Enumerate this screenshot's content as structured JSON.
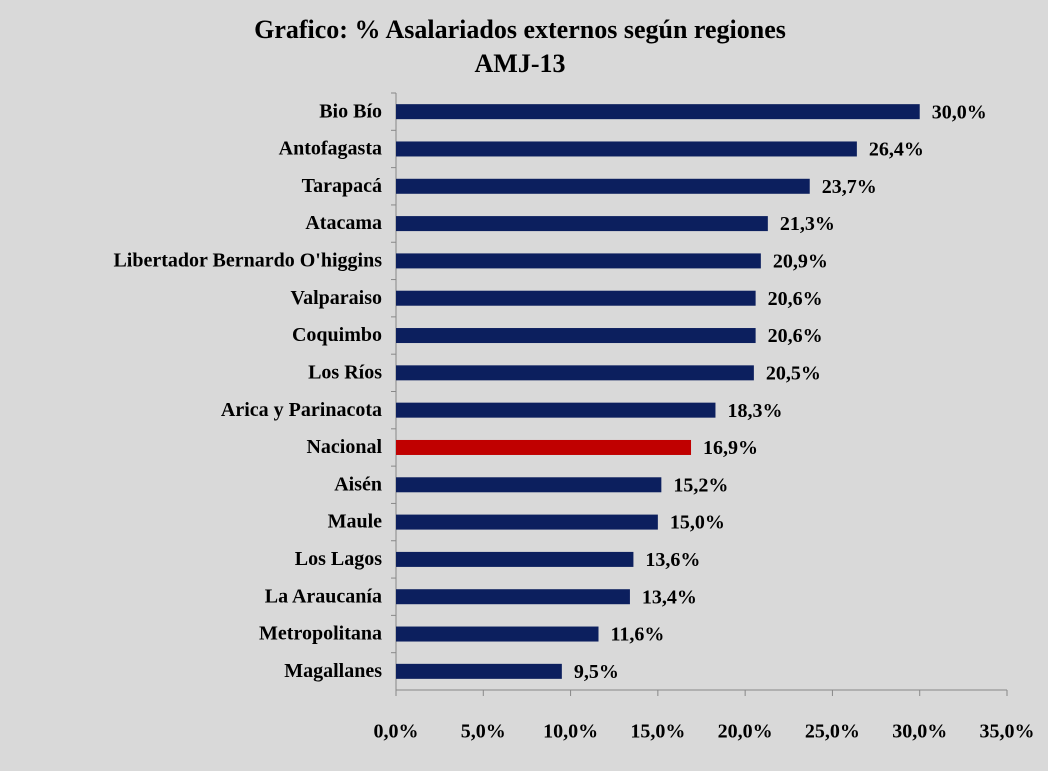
{
  "chart_data": {
    "type": "barh",
    "title": "Grafico: % Asalariados externos según regiones",
    "subtitle": "AMJ-13",
    "categories": [
      "Bio Bío",
      "Antofagasta",
      "Tarapacá",
      "Atacama",
      "Libertador Bernardo O'higgins",
      "Valparaiso",
      "Coquimbo",
      "Los Ríos",
      "Arica y Parinacota",
      "Nacional",
      "Aisén",
      "Maule",
      "Los Lagos",
      "La Araucanía",
      "Metropolitana",
      "Magallanes"
    ],
    "values": [
      30.0,
      26.4,
      23.7,
      21.3,
      20.9,
      20.6,
      20.6,
      20.5,
      18.3,
      16.9,
      15.2,
      15.0,
      13.6,
      13.4,
      11.6,
      9.5
    ],
    "value_labels": [
      "30,0%",
      "26,4%",
      "23,7%",
      "21,3%",
      "20,9%",
      "20,6%",
      "20,6%",
      "20,5%",
      "18,3%",
      "16,9%",
      "15,2%",
      "15,0%",
      "13,6%",
      "13,4%",
      "11,6%",
      "9,5%"
    ],
    "colors": [
      "#0c1f5e",
      "#0c1f5e",
      "#0c1f5e",
      "#0c1f5e",
      "#0c1f5e",
      "#0c1f5e",
      "#0c1f5e",
      "#0c1f5e",
      "#0c1f5e",
      "#c00000",
      "#0c1f5e",
      "#0c1f5e",
      "#0c1f5e",
      "#0c1f5e",
      "#0c1f5e",
      "#0c1f5e"
    ],
    "xlim": [
      0,
      35
    ],
    "xticks": [
      {
        "value": 0,
        "label": "0,0%"
      },
      {
        "value": 5,
        "label": "5,0%"
      },
      {
        "value": 10,
        "label": "10,0%"
      },
      {
        "value": 15,
        "label": "15,0%"
      },
      {
        "value": 20,
        "label": "20,0%"
      },
      {
        "value": 25,
        "label": "25,0%"
      },
      {
        "value": 30,
        "label": "30,0%"
      },
      {
        "value": 35,
        "label": "35,0%"
      }
    ]
  }
}
